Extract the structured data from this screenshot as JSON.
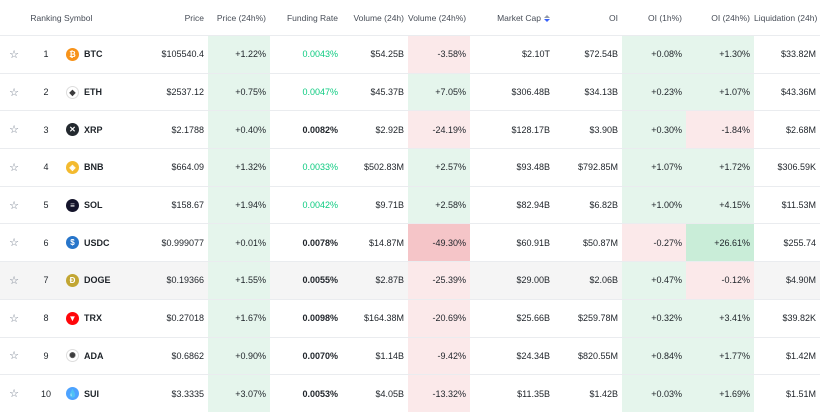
{
  "headers": {
    "ranking": "Ranking",
    "symbol": "Symbol",
    "price": "Price",
    "price_change": "Price (24h%)",
    "funding": "Funding Rate",
    "volume": "Volume (24h)",
    "volume_change": "Volume (24h%)",
    "market_cap": "Market Cap",
    "oi": "OI",
    "oi_1h": "OI (1h%)",
    "oi_24h": "OI (24h%)",
    "liquidation": "Liquidation (24h)"
  },
  "colors": {
    "green_bg": "#e5f5ec",
    "red_bg": "#fbe9ea",
    "red_strong": "#f5c5c8",
    "green_strong": "#c9edd8",
    "funding_green": "#0ecb81"
  },
  "rows": [
    {
      "rank": "1",
      "symbol": "BTC",
      "icon": "btc-icon",
      "icon_color": "#f7931a",
      "glyph": "₿",
      "price": "$105540.4",
      "price_change": "+1.22%",
      "funding": "0.0043%",
      "funding_positive": true,
      "volume": "$54.25B",
      "volume_change": "-3.58%",
      "vol_tone": "red",
      "market_cap": "$2.10T",
      "oi": "$72.54B",
      "oi_1h": "+0.08%",
      "oi1_tone": "green",
      "oi_24h": "+1.30%",
      "oi24_tone": "green",
      "liquidation": "$33.82M"
    },
    {
      "rank": "2",
      "symbol": "ETH",
      "icon": "eth-icon",
      "icon_color": "#ffffff",
      "glyph": "◆",
      "price": "$2537.12",
      "price_change": "+0.75%",
      "funding": "0.0047%",
      "funding_positive": true,
      "volume": "$45.37B",
      "volume_change": "+7.05%",
      "vol_tone": "green",
      "market_cap": "$306.48B",
      "oi": "$34.13B",
      "oi_1h": "+0.23%",
      "oi1_tone": "green",
      "oi_24h": "+1.07%",
      "oi24_tone": "green",
      "liquidation": "$43.36M"
    },
    {
      "rank": "3",
      "symbol": "XRP",
      "icon": "xrp-icon",
      "icon_color": "#23292f",
      "glyph": "✕",
      "price": "$2.1788",
      "price_change": "+0.40%",
      "funding": "0.0082%",
      "funding_positive": false,
      "volume": "$2.92B",
      "volume_change": "-24.19%",
      "vol_tone": "red",
      "market_cap": "$128.17B",
      "oi": "$3.90B",
      "oi_1h": "+0.30%",
      "oi1_tone": "green",
      "oi_24h": "-1.84%",
      "oi24_tone": "red",
      "liquidation": "$2.68M"
    },
    {
      "rank": "4",
      "symbol": "BNB",
      "icon": "bnb-icon",
      "icon_color": "#f3ba2f",
      "glyph": "◈",
      "price": "$664.09",
      "price_change": "+1.32%",
      "funding": "0.0033%",
      "funding_positive": true,
      "volume": "$502.83M",
      "volume_change": "+2.57%",
      "vol_tone": "green",
      "market_cap": "$93.48B",
      "oi": "$792.85M",
      "oi_1h": "+1.07%",
      "oi1_tone": "green",
      "oi_24h": "+1.72%",
      "oi24_tone": "green",
      "liquidation": "$306.59K"
    },
    {
      "rank": "5",
      "symbol": "SOL",
      "icon": "sol-icon",
      "icon_color": "#14142b",
      "glyph": "≡",
      "price": "$158.67",
      "price_change": "+1.94%",
      "funding": "0.0042%",
      "funding_positive": true,
      "volume": "$9.71B",
      "volume_change": "+2.58%",
      "vol_tone": "green",
      "market_cap": "$82.94B",
      "oi": "$6.82B",
      "oi_1h": "+1.00%",
      "oi1_tone": "green",
      "oi_24h": "+4.15%",
      "oi24_tone": "green",
      "liquidation": "$11.53M"
    },
    {
      "rank": "6",
      "symbol": "USDC",
      "icon": "usdc-icon",
      "icon_color": "#2775ca",
      "glyph": "$",
      "price": "$0.999077",
      "price_change": "+0.01%",
      "funding": "0.0078%",
      "funding_positive": false,
      "volume": "$14.87M",
      "volume_change": "-49.30%",
      "vol_tone": "red_strong",
      "market_cap": "$60.91B",
      "oi": "$50.87M",
      "oi_1h": "-0.27%",
      "oi1_tone": "red",
      "oi_24h": "+26.61%",
      "oi24_tone": "green_strong",
      "liquidation": "$255.74"
    },
    {
      "rank": "7",
      "symbol": "DOGE",
      "icon": "doge-icon",
      "icon_color": "#c2a633",
      "glyph": "Ð",
      "price": "$0.19366",
      "price_change": "+1.55%",
      "funding": "0.0055%",
      "funding_positive": false,
      "volume": "$2.87B",
      "volume_change": "-25.39%",
      "vol_tone": "red",
      "market_cap": "$29.00B",
      "oi": "$2.06B",
      "oi_1h": "+0.47%",
      "oi1_tone": "green",
      "oi_24h": "-0.12%",
      "oi24_tone": "red",
      "liquidation": "$4.90M"
    },
    {
      "rank": "8",
      "symbol": "TRX",
      "icon": "trx-icon",
      "icon_color": "#ff060a",
      "glyph": "▼",
      "price": "$0.27018",
      "price_change": "+1.67%",
      "funding": "0.0098%",
      "funding_positive": false,
      "volume": "$164.38M",
      "volume_change": "-20.69%",
      "vol_tone": "red",
      "market_cap": "$25.66B",
      "oi": "$259.78M",
      "oi_1h": "+0.32%",
      "oi1_tone": "green",
      "oi_24h": "+3.41%",
      "oi24_tone": "green",
      "liquidation": "$39.82K"
    },
    {
      "rank": "9",
      "symbol": "ADA",
      "icon": "ada-icon",
      "icon_color": "#ffffff",
      "glyph": "✺",
      "price": "$0.6862",
      "price_change": "+0.90%",
      "funding": "0.0070%",
      "funding_positive": false,
      "volume": "$1.14B",
      "volume_change": "-9.42%",
      "vol_tone": "red",
      "market_cap": "$24.34B",
      "oi": "$820.55M",
      "oi_1h": "+0.84%",
      "oi1_tone": "green",
      "oi_24h": "+1.77%",
      "oi24_tone": "green",
      "liquidation": "$1.42M"
    },
    {
      "rank": "10",
      "symbol": "SUI",
      "icon": "sui-icon",
      "icon_color": "#4da2ff",
      "glyph": "💧",
      "price": "$3.3335",
      "price_change": "+3.07%",
      "funding": "0.0053%",
      "funding_positive": false,
      "volume": "$4.05B",
      "volume_change": "-13.32%",
      "vol_tone": "red",
      "market_cap": "$11.35B",
      "oi": "$1.42B",
      "oi_1h": "+0.03%",
      "oi1_tone": "green",
      "oi_24h": "+1.69%",
      "oi24_tone": "green",
      "liquidation": "$1.51M"
    }
  ]
}
